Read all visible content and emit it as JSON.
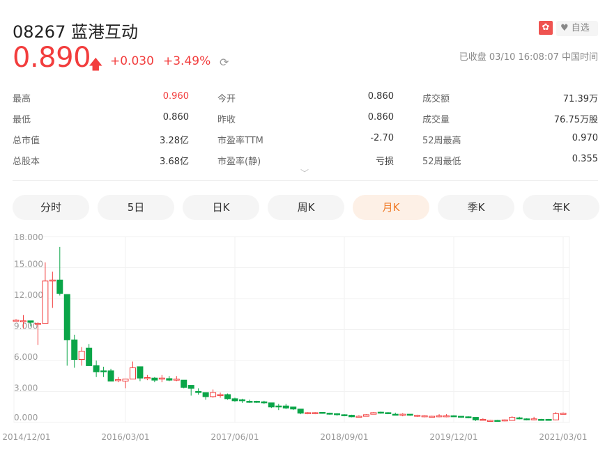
{
  "header": {
    "title": "08267 蓝港互动",
    "market_badge": "✿",
    "favorite_label": "自选",
    "price": "0.890",
    "change": "+0.030",
    "change_pct": "+3.49%",
    "status": "已收盘 03/10 16:08:07 中国时间"
  },
  "stats": [
    [
      {
        "label": "最高",
        "value": "0.960",
        "red": true
      },
      {
        "label": "今开",
        "value": "0.860"
      },
      {
        "label": "成交额",
        "value": "71.39万"
      }
    ],
    [
      {
        "label": "最低",
        "value": "0.860"
      },
      {
        "label": "昨收",
        "value": "0.860"
      },
      {
        "label": "成交量",
        "value": "76.75万股"
      }
    ],
    [
      {
        "label": "总市值",
        "value": "3.28亿"
      },
      {
        "label": "市盈率TTM",
        "value": "-2.70"
      },
      {
        "label": "52周最高",
        "value": "0.970"
      }
    ],
    [
      {
        "label": "总股本",
        "value": "3.68亿"
      },
      {
        "label": "市盈率(静)",
        "value": "亏损"
      },
      {
        "label": "52周最低",
        "value": "0.355"
      }
    ]
  ],
  "tabs": [
    {
      "label": "分时"
    },
    {
      "label": "5日"
    },
    {
      "label": "日K"
    },
    {
      "label": "周K"
    },
    {
      "label": "月K",
      "active": true
    },
    {
      "label": "季K"
    },
    {
      "label": "年K"
    }
  ],
  "colors": {
    "up": "#f23d3d",
    "down": "#0aa548",
    "active_tab": "#f07c2a"
  },
  "chart_data": {
    "type": "candlestick",
    "period": "monthly",
    "ylim": [
      0,
      18
    ],
    "yticks": [
      "18.000",
      "15.000",
      "12.000",
      "9.000",
      "6.000",
      "3.000",
      "0.000"
    ],
    "xticks": [
      {
        "label": "2014/12/01",
        "index": 0
      },
      {
        "label": "2016/03/01",
        "index": 15
      },
      {
        "label": "2017/06/01",
        "index": 30
      },
      {
        "label": "2018/09/01",
        "index": 45
      },
      {
        "label": "2019/12/01",
        "index": 60
      },
      {
        "label": "2021/03/01",
        "index": 75
      }
    ],
    "ohlc": [
      [
        9.9,
        10,
        9.8,
        9.9
      ],
      [
        9.8,
        10.4,
        9.1,
        9.85
      ],
      [
        9.85,
        9.85,
        9.3,
        9.7
      ],
      [
        9.55,
        9.7,
        7.5,
        9.6
      ],
      [
        9.6,
        15.5,
        9.6,
        13.7
      ],
      [
        13.7,
        14.6,
        11.1,
        13.8
      ],
      [
        13.8,
        17.0,
        12.3,
        12.5
      ],
      [
        12.4,
        12.4,
        5.5,
        8.0
      ],
      [
        8.0,
        8.5,
        5.3,
        6.1
      ],
      [
        6.1,
        7.3,
        5.5,
        6.9
      ],
      [
        7.2,
        7.6,
        5.5,
        5.5
      ],
      [
        5.5,
        6.0,
        4.4,
        4.9
      ],
      [
        5.0,
        5.4,
        4.4,
        4.9
      ],
      [
        5.0,
        5.2,
        4.0,
        4.0
      ],
      [
        4.1,
        4.4,
        3.9,
        4.15
      ],
      [
        4.0,
        4.2,
        3.3,
        4.2
      ],
      [
        4.2,
        5.9,
        4.2,
        5.3
      ],
      [
        5.4,
        5.4,
        4.0,
        4.3
      ],
      [
        4.3,
        4.6,
        4.1,
        4.35
      ],
      [
        4.3,
        4.4,
        3.9,
        4.1
      ],
      [
        4.25,
        4.6,
        3.9,
        4.3
      ],
      [
        4.25,
        4.5,
        4.0,
        4.1
      ],
      [
        4.1,
        4.5,
        4.0,
        4.2
      ],
      [
        4.1,
        4.1,
        3.3,
        3.4
      ],
      [
        3.6,
        3.6,
        2.6,
        3.3
      ],
      [
        3.0,
        3.3,
        2.7,
        2.9
      ],
      [
        2.9,
        2.9,
        2.2,
        2.5
      ],
      [
        2.5,
        3.2,
        2.4,
        2.9
      ],
      [
        2.7,
        2.9,
        2.4,
        2.7
      ],
      [
        2.7,
        2.8,
        2.2,
        2.3
      ],
      [
        2.3,
        2.4,
        2.0,
        2.1
      ],
      [
        2.2,
        2.3,
        1.9,
        2.1
      ],
      [
        2.05,
        2.2,
        1.9,
        2.0
      ],
      [
        2.05,
        2.1,
        1.9,
        2.0
      ],
      [
        2.0,
        2.1,
        1.8,
        1.9
      ],
      [
        1.9,
        1.9,
        1.4,
        1.5
      ],
      [
        1.6,
        1.8,
        1.2,
        1.5
      ],
      [
        1.6,
        1.8,
        1.3,
        1.4
      ],
      [
        1.5,
        1.5,
        1.2,
        1.3
      ],
      [
        1.3,
        1.3,
        0.8,
        0.9
      ],
      [
        0.9,
        1.0,
        0.8,
        0.95
      ],
      [
        0.9,
        1.0,
        0.8,
        0.95
      ],
      [
        0.98,
        1.0,
        0.85,
        0.9
      ],
      [
        0.9,
        0.95,
        0.75,
        0.8
      ],
      [
        0.85,
        0.9,
        0.65,
        0.8
      ],
      [
        0.75,
        0.8,
        0.6,
        0.65
      ],
      [
        0.7,
        0.75,
        0.5,
        0.55
      ],
      [
        0.55,
        0.7,
        0.5,
        0.6
      ],
      [
        0.6,
        0.8,
        0.6,
        0.75
      ],
      [
        0.8,
        1.0,
        0.8,
        0.95
      ],
      [
        1.0,
        1.05,
        0.85,
        0.9
      ],
      [
        0.95,
        1.0,
        0.8,
        0.85
      ],
      [
        0.8,
        0.95,
        0.7,
        0.75
      ],
      [
        0.75,
        0.9,
        0.6,
        0.8
      ],
      [
        0.8,
        0.8,
        0.65,
        0.7
      ],
      [
        0.7,
        0.75,
        0.55,
        0.7
      ],
      [
        0.6,
        0.7,
        0.5,
        0.65
      ],
      [
        0.55,
        0.65,
        0.5,
        0.6
      ],
      [
        0.6,
        0.8,
        0.5,
        0.65
      ],
      [
        0.6,
        0.8,
        0.5,
        0.65
      ],
      [
        0.65,
        0.7,
        0.55,
        0.6
      ],
      [
        0.6,
        0.6,
        0.45,
        0.5
      ],
      [
        0.55,
        0.6,
        0.4,
        0.45
      ],
      [
        0.5,
        0.5,
        0.15,
        0.25
      ],
      [
        0.3,
        0.4,
        0.2,
        0.3
      ],
      [
        0.2,
        0.25,
        0.1,
        0.2
      ],
      [
        0.2,
        0.25,
        0.1,
        0.15
      ],
      [
        0.2,
        0.3,
        0.1,
        0.25
      ],
      [
        0.2,
        0.6,
        0.2,
        0.5
      ],
      [
        0.45,
        0.55,
        0.3,
        0.35
      ],
      [
        0.35,
        0.4,
        0.2,
        0.3
      ],
      [
        0.25,
        0.55,
        0.2,
        0.35
      ],
      [
        0.3,
        0.35,
        0.25,
        0.25
      ],
      [
        0.3,
        0.35,
        0.25,
        0.25
      ],
      [
        0.25,
        1.0,
        0.2,
        0.85
      ],
      [
        0.86,
        0.97,
        0.8,
        0.89
      ]
    ]
  }
}
